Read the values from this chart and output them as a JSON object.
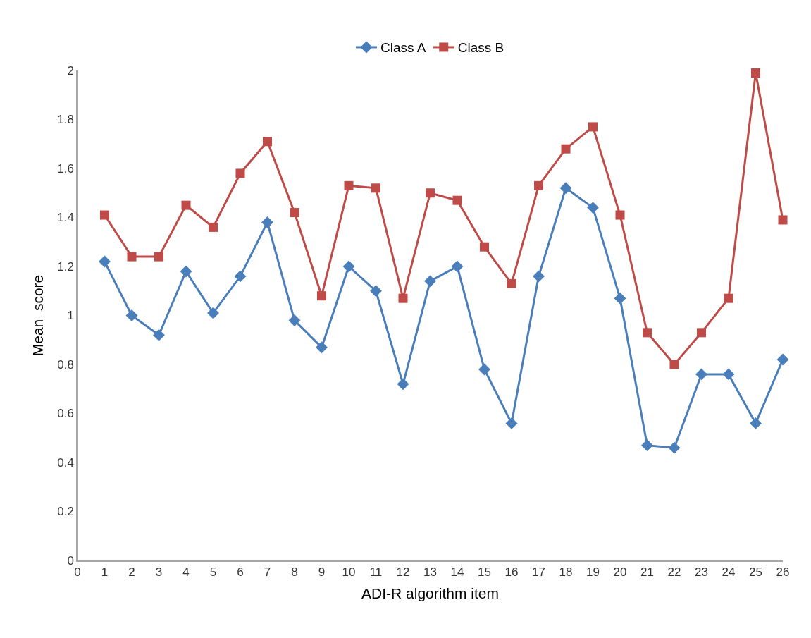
{
  "chart_data": {
    "type": "line",
    "xlabel": "ADI-R algorithm item",
    "ylabel": "Mean  score",
    "x": [
      1,
      2,
      3,
      4,
      5,
      6,
      7,
      8,
      9,
      10,
      11,
      12,
      13,
      14,
      15,
      16,
      17,
      18,
      19,
      20,
      21,
      22,
      23,
      24,
      25,
      26
    ],
    "series": [
      {
        "name": "Class A",
        "color": "#4a7ebb",
        "marker": "diamond",
        "values": [
          1.22,
          1.0,
          0.92,
          1.18,
          1.01,
          1.16,
          1.38,
          0.98,
          0.87,
          1.2,
          1.1,
          0.72,
          1.14,
          1.2,
          0.78,
          0.56,
          1.16,
          1.52,
          1.44,
          1.07,
          0.47,
          0.46,
          0.76,
          0.76,
          0.56,
          0.82
        ]
      },
      {
        "name": "Class B",
        "color": "#be4b48",
        "marker": "square",
        "values": [
          1.41,
          1.24,
          1.24,
          1.45,
          1.36,
          1.58,
          1.71,
          1.42,
          1.08,
          1.53,
          1.52,
          1.07,
          1.5,
          1.47,
          1.28,
          1.13,
          1.53,
          1.68,
          1.77,
          1.41,
          0.93,
          0.8,
          0.93,
          1.07,
          1.99,
          1.39
        ]
      }
    ],
    "xlim": [
      0,
      26
    ],
    "xticks": [
      0,
      1,
      2,
      3,
      4,
      5,
      6,
      7,
      8,
      9,
      10,
      11,
      12,
      13,
      14,
      15,
      16,
      17,
      18,
      19,
      20,
      21,
      22,
      23,
      24,
      25,
      26
    ],
    "ylim": [
      0,
      2
    ],
    "yticks": [
      0,
      0.2,
      0.4,
      0.6,
      0.8,
      1,
      1.2,
      1.4,
      1.6,
      1.8,
      2
    ],
    "grid": false,
    "legend": "top",
    "line_style": "solid"
  }
}
